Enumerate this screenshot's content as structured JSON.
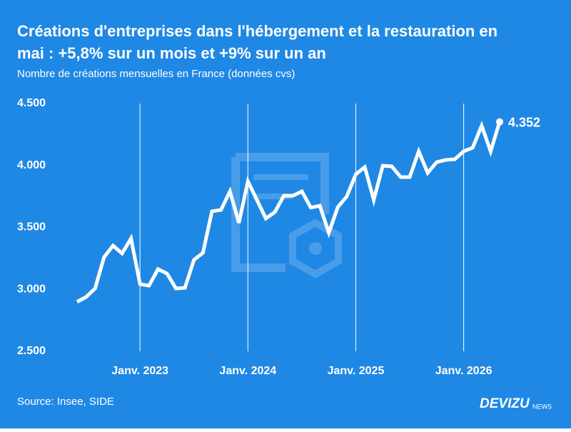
{
  "chart_data": {
    "type": "line",
    "title": [
      "Créations d'entreprises dans l'hébergement et la restauration en",
      "mai : +5,8% sur un mois et +9% sur un an"
    ],
    "subtitle": "Nombre de créations mensuelles en France (données cvs)",
    "source": "Source: Insee, SIDE",
    "brand": "DEVIZU",
    "brand_suffix": "NEWS",
    "x": [
      "2022-06",
      "2022-07",
      "2022-08",
      "2022-09",
      "2022-10",
      "2022-11",
      "2022-12",
      "2023-01",
      "2023-02",
      "2023-03",
      "2023-04",
      "2023-05",
      "2023-06",
      "2023-07",
      "2023-08",
      "2023-09",
      "2023-10",
      "2023-11",
      "2023-12",
      "2024-01",
      "2024-02",
      "2024-03",
      "2024-04",
      "2024-05",
      "2024-06",
      "2024-07",
      "2024-08",
      "2024-09",
      "2024-10",
      "2024-11",
      "2024-12",
      "2025-01",
      "2025-02",
      "2025-03",
      "2025-04",
      "2025-05",
      "2025-06",
      "2025-07",
      "2025-08",
      "2025-09",
      "2025-10",
      "2025-11",
      "2025-12",
      "2026-01",
      "2026-02",
      "2026-03",
      "2026-04",
      "2026-05"
    ],
    "series": [
      {
        "color": "#ffffff",
        "values": [
          2900,
          2938,
          3007,
          3260,
          3353,
          3290,
          3411,
          3042,
          3030,
          3163,
          3128,
          3007,
          3013,
          3238,
          3295,
          3630,
          3641,
          3791,
          3537,
          3872,
          3722,
          3572,
          3624,
          3756,
          3756,
          3791,
          3660,
          3675,
          3457,
          3664,
          3750,
          3929,
          3987,
          3722,
          3998,
          3993,
          3906,
          3906,
          4114,
          3941,
          4027,
          4045,
          4050,
          4114,
          4143,
          4321,
          4114,
          4352
        ],
        "value_labels": [
          null,
          null,
          null,
          null,
          null,
          null,
          null,
          null,
          null,
          null,
          null,
          null,
          null,
          null,
          null,
          null,
          null,
          null,
          null,
          null,
          null,
          null,
          null,
          null,
          null,
          null,
          null,
          null,
          null,
          null,
          null,
          null,
          null,
          null,
          null,
          null,
          null,
          null,
          null,
          null,
          null,
          null,
          null,
          null,
          null,
          null,
          null,
          "4.352"
        ]
      }
    ],
    "xlim": [
      "2022-06",
      "2026-05"
    ],
    "xticks": [
      {
        "value": "2023-01",
        "label": "Janv. 2023"
      },
      {
        "value": "2024-01",
        "label": "Janv. 2024"
      },
      {
        "value": "2025-01",
        "label": "Janv. 2025"
      },
      {
        "value": "2026-01",
        "label": "Janv. 2026"
      }
    ],
    "ylim": [
      2500,
      4500
    ],
    "yticks": [
      {
        "value": 2500,
        "label": "2.500"
      },
      {
        "value": 3000,
        "label": "3.000"
      },
      {
        "value": 3500,
        "label": "3.500"
      },
      {
        "value": 4000,
        "label": "4.000"
      },
      {
        "value": 4500,
        "label": "4.500"
      }
    ],
    "grid": "x",
    "background": "#1f88e5"
  }
}
